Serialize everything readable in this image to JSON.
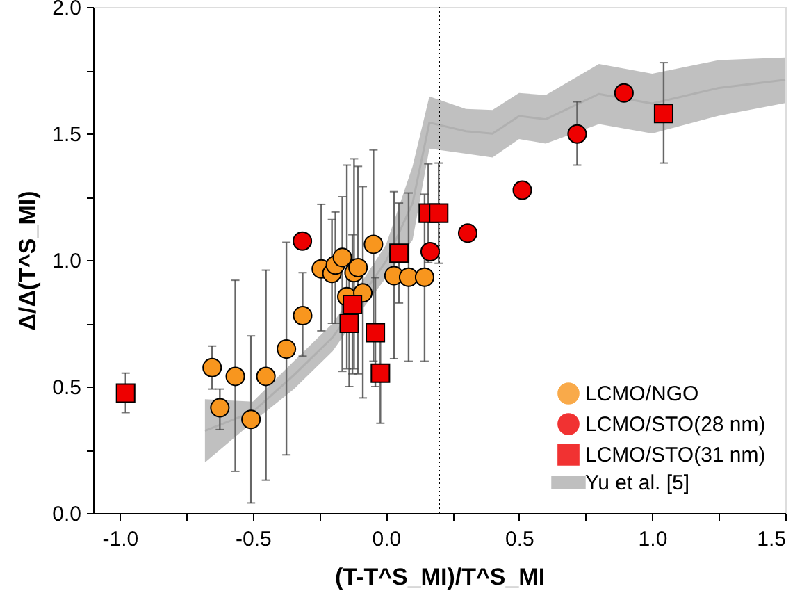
{
  "chart_data": {
    "type": "scatter",
    "xlabel": "(T-T^S_MI)/T^S_MI",
    "ylabel": "Δ/Δ(T^S_MI)",
    "xlim": [
      -1.1,
      1.5
    ],
    "ylim": [
      0,
      2
    ],
    "xticks": [
      {
        "value": -1,
        "label": "-1.0"
      },
      {
        "value": -0.75,
        "label": null
      },
      {
        "value": -0.5,
        "label": "-0.5"
      },
      {
        "value": -0.25,
        "label": null
      },
      {
        "value": 0,
        "label": "0.0"
      },
      {
        "value": 0.25,
        "label": null
      },
      {
        "value": 0.5,
        "label": "0.5"
      },
      {
        "value": 0.75,
        "label": null
      },
      {
        "value": 1,
        "label": "1.0"
      },
      {
        "value": 1.25,
        "label": null
      },
      {
        "value": 1.5,
        "label": "1.5"
      }
    ],
    "yticks": [
      {
        "value": 0,
        "label": "0.0"
      },
      {
        "value": 0.25,
        "label": null
      },
      {
        "value": 0.5,
        "label": "0.5"
      },
      {
        "value": 0.75,
        "label": null
      },
      {
        "value": 1,
        "label": "1.0"
      },
      {
        "value": 1.25,
        "label": null
      },
      {
        "value": 1.5,
        "label": "1.5"
      },
      {
        "value": 1.75,
        "label": null
      },
      {
        "value": 2,
        "label": "2.0"
      }
    ],
    "legend": "bottom right",
    "grid": false,
    "ref_lines": [
      {
        "axis": "x",
        "value": 0.2,
        "color": "#000000",
        "line_style": "dotted"
      }
    ],
    "series": [
      {
        "name": "LCMO/NGO",
        "marker": "circle",
        "color": "#f8961e",
        "x": [
          -0.653,
          -0.624,
          -0.566,
          -0.507,
          -0.451,
          -0.374,
          -0.313,
          -0.243,
          -0.203,
          -0.19,
          -0.164,
          -0.147,
          -0.12,
          -0.105,
          -0.087,
          -0.047,
          0.03,
          0.085,
          0.145
        ],
        "values": [
          0.575,
          0.416,
          0.54,
          0.37,
          0.54,
          0.648,
          0.78,
          0.965,
          0.947,
          0.98,
          1.01,
          0.855,
          0.95,
          0.97,
          0.87,
          1.062,
          0.938,
          0.932,
          0.932
        ],
        "errors": [
          [
            0.49,
            0.66
          ],
          [
            0.33,
            0.49
          ],
          [
            0.165,
            0.92
          ],
          [
            0.04,
            0.7
          ],
          [
            0.13,
            0.96
          ],
          [
            0.23,
            1.07
          ],
          [
            0.62,
            0.95
          ],
          [
            0.72,
            1.22
          ],
          [
            0.75,
            1.16
          ],
          [
            0.75,
            1.19
          ],
          [
            0.56,
            1.25
          ],
          [
            0.57,
            1.375
          ],
          [
            0.57,
            1.4
          ],
          [
            0.55,
            1.37
          ],
          [
            0.455,
            1.29
          ],
          [
            0.6,
            1.435
          ],
          [
            0.61,
            1.27
          ],
          [
            0.6,
            1.265
          ],
          [
            0.6,
            1.26
          ]
        ]
      },
      {
        "name": "LCMO/STO(28 nm)",
        "marker": "circle",
        "color": "#ee0000",
        "x": [
          -0.314,
          0.166,
          0.307,
          0.512,
          0.718,
          0.894
        ],
        "values": [
          1.075,
          1.033,
          1.106,
          1.276,
          1.498,
          1.66
        ],
        "errors": [
          null,
          null,
          null,
          null,
          [
            1.375,
            1.625
          ],
          null
        ]
      },
      {
        "name": "LCMO/STO(31 nm)",
        "marker": "square",
        "color": "#ee0000",
        "x": [
          -0.978,
          -0.138,
          -0.126,
          -0.04,
          -0.021,
          0.049,
          0.159,
          0.198,
          1.043
        ],
        "values": [
          0.474,
          0.75,
          0.824,
          0.713,
          0.553,
          1.027,
          1.185,
          1.185,
          1.579
        ],
        "errors": [
          [
            0.397,
            0.553
          ],
          [
            0.5,
            1.0
          ],
          [
            0.55,
            1.1
          ],
          [
            0.5,
            0.93
          ],
          [
            0.355,
            0.75
          ],
          [
            0.83,
            1.225
          ],
          [
            0.99,
            1.38
          ],
          [
            0.987,
            1.383
          ],
          [
            1.383,
            1.78
          ]
        ]
      },
      {
        "name": "Yu et al. [5]",
        "type": "line",
        "color": "#b0b0b0",
        "x": [
          -0.68,
          -0.5,
          -0.346,
          -0.2,
          -0.1,
          0.0,
          0.1,
          0.163,
          0.3,
          0.4,
          0.5,
          0.6,
          0.8,
          1.0,
          1.25,
          1.5
        ],
        "values": [
          0.325,
          0.4,
          0.545,
          0.695,
          0.845,
          0.995,
          1.225,
          1.543,
          1.509,
          1.499,
          1.569,
          1.556,
          1.656,
          1.618,
          1.68,
          1.712
        ],
        "upper": [
          0.45,
          0.44,
          0.6,
          0.75,
          0.9,
          1.06,
          1.37,
          1.646,
          1.597,
          1.593,
          1.66,
          1.652,
          1.775,
          1.736,
          1.79,
          1.8
        ],
        "lower": [
          0.2,
          0.36,
          0.49,
          0.64,
          0.79,
          0.93,
          1.08,
          1.44,
          1.42,
          1.405,
          1.478,
          1.46,
          1.537,
          1.5,
          1.57,
          1.62
        ]
      }
    ]
  }
}
